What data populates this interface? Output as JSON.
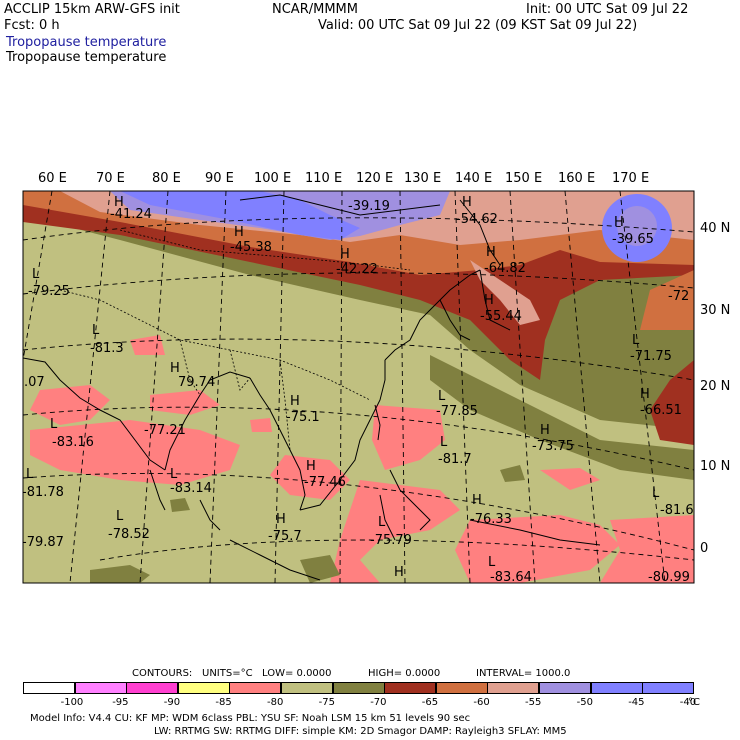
{
  "header": {
    "model": "ACCLIP 15km ARW-GFS init",
    "org": "NCAR/MMMM",
    "init": "Init: 00 UTC Sat 09 Jul 22",
    "fcst": "Fcst:     0 h",
    "valid": "Valid: 00 UTC Sat 09 Jul 22 (09 KST Sat 09 Jul 22)",
    "title1": "Tropopause temperature",
    "title2": "Tropopause temperature"
  },
  "axes": {
    "lon_labels": [
      "60 E",
      "70 E",
      "80 E",
      "90 E",
      "100 E",
      "110 E",
      "120 E",
      "130 E",
      "140 E",
      "150 E",
      "160 E",
      "170 E"
    ],
    "lat_labels": [
      "40 N",
      "30 N",
      "20 N",
      "10 N",
      "0"
    ]
  },
  "annotations": [
    {
      "text": "H",
      "k": "h1"
    },
    {
      "text": "-41.24",
      "k": "v1"
    },
    {
      "text": "-39.19",
      "k": "v2"
    },
    {
      "text": "H",
      "k": "h3"
    },
    {
      "text": "-54.62",
      "k": "v3"
    },
    {
      "text": "H",
      "k": "h4"
    },
    {
      "text": "-39.65",
      "k": "v4"
    },
    {
      "text": "H",
      "k": "h5"
    },
    {
      "text": "-45.38",
      "k": "v5"
    },
    {
      "text": "H",
      "k": "h6"
    },
    {
      "text": "-42.22",
      "k": "v6"
    },
    {
      "text": "H",
      "k": "h7"
    },
    {
      "text": "-64.82",
      "k": "v7"
    },
    {
      "text": "L",
      "k": "l8"
    },
    {
      "text": "-79.25",
      "k": "v8"
    },
    {
      "text": "-72",
      "k": "v9"
    },
    {
      "text": "H",
      "k": "h10"
    },
    {
      "text": "-55.44",
      "k": "v10"
    },
    {
      "text": "L",
      "k": "l11"
    },
    {
      "text": "-81.3",
      "k": "v11"
    },
    {
      "text": "L",
      "k": "l12"
    },
    {
      "text": "-71.75",
      "k": "v12"
    },
    {
      "text": ".07",
      "k": "v13"
    },
    {
      "text": "H",
      "k": "h14"
    },
    {
      "text": "79.74",
      "k": "v14"
    },
    {
      "text": "H",
      "k": "h15"
    },
    {
      "text": "-75.1",
      "k": "v15"
    },
    {
      "text": "L",
      "k": "l16"
    },
    {
      "text": "-77.85",
      "k": "v16"
    },
    {
      "text": "H",
      "k": "h17"
    },
    {
      "text": "-66.51",
      "k": "v17"
    },
    {
      "text": "L",
      "k": "l18"
    },
    {
      "text": "-83.16",
      "k": "v18"
    },
    {
      "text": "-77.21",
      "k": "v19"
    },
    {
      "text": "H",
      "k": "h20"
    },
    {
      "text": "-73.75",
      "k": "v20"
    },
    {
      "text": "L",
      "k": "l21"
    },
    {
      "text": "-81.7",
      "k": "v21"
    },
    {
      "text": "H",
      "k": "h22"
    },
    {
      "text": "-77.46",
      "k": "v22"
    },
    {
      "text": "L",
      "k": "l23"
    },
    {
      "text": "-81.78",
      "k": "v23"
    },
    {
      "text": "L",
      "k": "l24"
    },
    {
      "text": "-83.14",
      "k": "v24"
    },
    {
      "text": "H",
      "k": "h25"
    },
    {
      "text": "-76.33",
      "k": "v25"
    },
    {
      "text": "L",
      "k": "l26"
    },
    {
      "text": "-81.6",
      "k": "v26"
    },
    {
      "text": "L",
      "k": "l27"
    },
    {
      "text": "-78.52",
      "k": "v27"
    },
    {
      "text": "H",
      "k": "h28"
    },
    {
      "text": "-75.7",
      "k": "v28"
    },
    {
      "text": "L",
      "k": "l29"
    },
    {
      "text": "-75.79",
      "k": "v29"
    },
    {
      "text": "-79.87",
      "k": "v30"
    },
    {
      "text": "L",
      "k": "l31"
    },
    {
      "text": "-83.64",
      "k": "v31"
    },
    {
      "text": "-80.99",
      "k": "v32"
    },
    {
      "text": "H",
      "k": "h33"
    }
  ],
  "contour_info": {
    "contours": "CONTOURS:",
    "units": "UNITS=°C",
    "low": "LOW=  0.0000",
    "high": "HIGH=  0.0000",
    "interval": "INTERVAL=    1000.0"
  },
  "colorbar": {
    "colors": [
      "#ffffff",
      "#ff80ff",
      "#ff40d0",
      "#ffff80",
      "#ff8080",
      "#c0c080",
      "#808040",
      "#a03020",
      "#d07040",
      "#e0a090",
      "#a090e0",
      "#8080ff",
      "#8080ff"
    ],
    "ticks": [
      "-100",
      "-95",
      "-90",
      "-85",
      "-80",
      "-75",
      "-70",
      "-65",
      "-60",
      "-55",
      "-50",
      "-45",
      "-40"
    ],
    "unit": "°C"
  },
  "footer": {
    "line1": "Model Info: V4.4      CU: KF       MP: WDM 6class  PBL: YSU        SF: Noah LSM      15 km     51 levels    90 sec",
    "line2": "LW: RRTMG    SW: RRTMG   DIFF: simple KM: 2D Smagor DAMP: Rayleigh3  SFLAY: MM5"
  }
}
